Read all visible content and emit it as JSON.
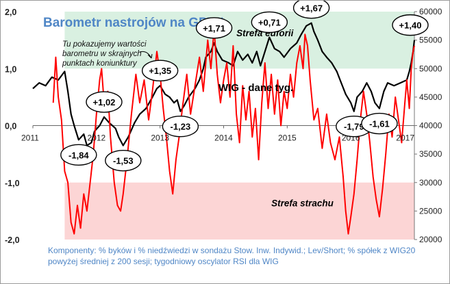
{
  "chart_data": {
    "type": "line",
    "title": "Barometr nastrojów na GPW*",
    "note": [
      "Tu pokazujemy wartości",
      "barometru w skrajnych",
      "punktach koniunktury"
    ],
    "series_label": "WIG - dane tyg.",
    "x_range": [
      2011,
      2017
    ],
    "x_ticks": [
      "2011",
      "2012",
      "2013",
      "2014",
      "2015",
      "2016",
      "2017"
    ],
    "y_left": {
      "range": [
        -2,
        2
      ],
      "ticks": [
        "-2,0",
        "-1,0",
        "0,0",
        "1,0",
        "2,0"
      ]
    },
    "y_right": {
      "range": [
        20000,
        60000
      ],
      "ticks": [
        "20000",
        "25000",
        "30000",
        "35000",
        "40000",
        "45000",
        "50000",
        "55000",
        "60000"
      ]
    },
    "zones": [
      {
        "name": "Strefa euforii",
        "from": 1,
        "to": 2,
        "color": "#d9f0e1"
      },
      {
        "name": "Strefa strachu",
        "from": -2,
        "to": -1,
        "color": "#fcd5d5"
      }
    ],
    "series": [
      {
        "name": "WIG",
        "axis": "right",
        "color": "#000000",
        "points": [
          [
            2011.0,
            46500
          ],
          [
            2011.1,
            47500
          ],
          [
            2011.2,
            47000
          ],
          [
            2011.3,
            48500
          ],
          [
            2011.4,
            48000
          ],
          [
            2011.5,
            49500
          ],
          [
            2011.55,
            46000
          ],
          [
            2011.6,
            42000
          ],
          [
            2011.65,
            40000
          ],
          [
            2011.72,
            37500
          ],
          [
            2011.8,
            38500
          ],
          [
            2011.85,
            36500
          ],
          [
            2011.92,
            37000
          ],
          [
            2011.97,
            39000
          ],
          [
            2012.05,
            40000
          ],
          [
            2012.12,
            41500
          ],
          [
            2012.2,
            40500
          ],
          [
            2012.3,
            39500
          ],
          [
            2012.35,
            38000
          ],
          [
            2012.42,
            36500
          ],
          [
            2012.5,
            38000
          ],
          [
            2012.6,
            40500
          ],
          [
            2012.68,
            42000
          ],
          [
            2012.78,
            43000
          ],
          [
            2012.88,
            45000
          ],
          [
            2012.95,
            46500
          ],
          [
            2013.0,
            47000
          ],
          [
            2013.08,
            45500
          ],
          [
            2013.15,
            45000
          ],
          [
            2013.22,
            44000
          ],
          [
            2013.27,
            44500
          ],
          [
            2013.32,
            42500
          ],
          [
            2013.38,
            43500
          ],
          [
            2013.45,
            45000
          ],
          [
            2013.55,
            46500
          ],
          [
            2013.62,
            48000
          ],
          [
            2013.68,
            50000
          ],
          [
            2013.72,
            52000
          ],
          [
            2013.8,
            53000
          ],
          [
            2013.85,
            54500
          ],
          [
            2013.9,
            53000
          ],
          [
            2013.98,
            51500
          ],
          [
            2014.08,
            51000
          ],
          [
            2014.15,
            50500
          ],
          [
            2014.22,
            53000
          ],
          [
            2014.3,
            51500
          ],
          [
            2014.38,
            52500
          ],
          [
            2014.45,
            51000
          ],
          [
            2014.52,
            53000
          ],
          [
            2014.58,
            50500
          ],
          [
            2014.65,
            53000
          ],
          [
            2014.72,
            55500
          ],
          [
            2014.8,
            53500
          ],
          [
            2014.88,
            53000
          ],
          [
            2014.95,
            52000
          ],
          [
            2015.05,
            53500
          ],
          [
            2015.15,
            54500
          ],
          [
            2015.22,
            56000
          ],
          [
            2015.3,
            57500
          ],
          [
            2015.38,
            58000
          ],
          [
            2015.42,
            56500
          ],
          [
            2015.48,
            55000
          ],
          [
            2015.55,
            53000
          ],
          [
            2015.62,
            52000
          ],
          [
            2015.7,
            51000
          ],
          [
            2015.78,
            49500
          ],
          [
            2015.85,
            47500
          ],
          [
            2015.92,
            45500
          ],
          [
            2016.0,
            44000
          ],
          [
            2016.05,
            42500
          ],
          [
            2016.1,
            45000
          ],
          [
            2016.18,
            46000
          ],
          [
            2016.25,
            47500
          ],
          [
            2016.32,
            46000
          ],
          [
            2016.38,
            44000
          ],
          [
            2016.45,
            43000
          ],
          [
            2016.52,
            46000
          ],
          [
            2016.58,
            47500
          ],
          [
            2016.68,
            47000
          ],
          [
            2016.78,
            47500
          ],
          [
            2016.88,
            48000
          ],
          [
            2016.92,
            49500
          ],
          [
            2016.95,
            51000
          ],
          [
            2016.98,
            53000
          ],
          [
            2017.0,
            55000
          ]
        ]
      },
      {
        "name": "Barometr",
        "axis": "left",
        "color": "#ff0000",
        "points": [
          [
            2011.32,
            0.4
          ],
          [
            2011.36,
            1.2
          ],
          [
            2011.4,
            0.5
          ],
          [
            2011.45,
            0.1
          ],
          [
            2011.5,
            -0.8
          ],
          [
            2011.55,
            -1.0
          ],
          [
            2011.6,
            -1.7
          ],
          [
            2011.65,
            -1.9
          ],
          [
            2011.7,
            -1.4
          ],
          [
            2011.75,
            -1.8
          ],
          [
            2011.8,
            -1.2
          ],
          [
            2011.85,
            -1.5
          ],
          [
            2011.9,
            -1.0
          ],
          [
            2011.95,
            -0.5
          ],
          [
            2012.0,
            0.2
          ],
          [
            2012.05,
            0.8
          ],
          [
            2012.08,
            1.0
          ],
          [
            2012.12,
            0.4
          ],
          [
            2012.18,
            0.6
          ],
          [
            2012.22,
            -0.2
          ],
          [
            2012.28,
            -1.0
          ],
          [
            2012.33,
            -1.4
          ],
          [
            2012.38,
            -1.5
          ],
          [
            2012.42,
            -1.2
          ],
          [
            2012.48,
            -0.6
          ],
          [
            2012.55,
            0.2
          ],
          [
            2012.62,
            0.9
          ],
          [
            2012.68,
            0.4
          ],
          [
            2012.75,
            0.8
          ],
          [
            2012.82,
            0.1
          ],
          [
            2012.88,
            0.6
          ],
          [
            2012.95,
            1.3
          ],
          [
            2013.0,
            0.9
          ],
          [
            2013.05,
            0.3
          ],
          [
            2013.1,
            -0.2
          ],
          [
            2013.15,
            -0.8
          ],
          [
            2013.2,
            -1.2
          ],
          [
            2013.25,
            -0.6
          ],
          [
            2013.3,
            -0.2
          ],
          [
            2013.35,
            0.3
          ],
          [
            2013.42,
            0.9
          ],
          [
            2013.48,
            0.2
          ],
          [
            2013.55,
            0.7
          ],
          [
            2013.62,
            1.2
          ],
          [
            2013.68,
            0.6
          ],
          [
            2013.75,
            1.5
          ],
          [
            2013.8,
            1.0
          ],
          [
            2013.85,
            1.7
          ],
          [
            2013.9,
            0.9
          ],
          [
            2013.95,
            0.4
          ],
          [
            2014.0,
            0.8
          ],
          [
            2014.05,
            1.1
          ],
          [
            2014.1,
            0.5
          ],
          [
            2014.15,
            1.4
          ],
          [
            2014.2,
            0.2
          ],
          [
            2014.25,
            -0.3
          ],
          [
            2014.3,
            0.7
          ],
          [
            2014.35,
            0.1
          ],
          [
            2014.4,
            0.6
          ],
          [
            2014.45,
            -0.2
          ],
          [
            2014.5,
            0.3
          ],
          [
            2014.55,
            -0.6
          ],
          [
            2014.6,
            0.4
          ],
          [
            2014.65,
            1.1
          ],
          [
            2014.7,
            0.3
          ],
          [
            2014.75,
            0.9
          ],
          [
            2014.8,
            0.2
          ],
          [
            2014.85,
            0.8
          ],
          [
            2014.9,
            0.0
          ],
          [
            2014.95,
            0.6
          ],
          [
            2015.0,
            0.3
          ],
          [
            2015.05,
            0.9
          ],
          [
            2015.1,
            0.5
          ],
          [
            2015.15,
            1.1
          ],
          [
            2015.2,
            1.4
          ],
          [
            2015.25,
            1.0
          ],
          [
            2015.28,
            1.6
          ],
          [
            2015.32,
            1.4
          ],
          [
            2015.36,
            0.8
          ],
          [
            2015.42,
            0.1
          ],
          [
            2015.48,
            0.3
          ],
          [
            2015.55,
            -0.4
          ],
          [
            2015.62,
            0.2
          ],
          [
            2015.68,
            -0.3
          ],
          [
            2015.75,
            -0.6
          ],
          [
            2015.82,
            -0.2
          ],
          [
            2015.88,
            -0.9
          ],
          [
            2015.92,
            -1.5
          ],
          [
            2015.96,
            -1.9
          ],
          [
            2016.0,
            -1.6
          ],
          [
            2016.05,
            -1.2
          ],
          [
            2016.1,
            -0.6
          ],
          [
            2016.15,
            0.1
          ],
          [
            2016.2,
            0.6
          ],
          [
            2016.25,
            0.2
          ],
          [
            2016.3,
            -0.3
          ],
          [
            2016.35,
            -0.9
          ],
          [
            2016.4,
            -1.3
          ],
          [
            2016.45,
            -1.6
          ],
          [
            2016.5,
            -1.1
          ],
          [
            2016.55,
            -0.5
          ],
          [
            2016.6,
            0.2
          ],
          [
            2016.65,
            -0.2
          ],
          [
            2016.7,
            0.5
          ],
          [
            2016.75,
            0.1
          ],
          [
            2016.8,
            -0.3
          ],
          [
            2016.85,
            0.4
          ],
          [
            2016.88,
            0.8
          ],
          [
            2016.92,
            0.3
          ],
          [
            2016.95,
            1.0
          ],
          [
            2016.98,
            1.3
          ],
          [
            2017.0,
            1.4
          ]
        ]
      }
    ],
    "annotations": [
      {
        "text": "-1,84",
        "x": 2011.72,
        "y": 37500,
        "side": "below"
      },
      {
        "text": "+1,02",
        "x": 2012.12,
        "y": 41500,
        "side": "above"
      },
      {
        "text": "-1,53",
        "x": 2012.42,
        "y": 36500,
        "side": "below"
      },
      {
        "text": "+1,35",
        "x": 2013.0,
        "y": 47000,
        "side": "above"
      },
      {
        "text": "-1,23",
        "x": 2013.32,
        "y": 42500,
        "side": "below"
      },
      {
        "text": "+1,71",
        "x": 2013.85,
        "y": 54500,
        "side": "above"
      },
      {
        "text": "+0,71",
        "x": 2014.72,
        "y": 55500,
        "side": "above"
      },
      {
        "text": "+1,67",
        "x": 2015.38,
        "y": 58000,
        "side": "above"
      },
      {
        "text": "-1,79",
        "x": 2016.05,
        "y": 42500,
        "side": "below"
      },
      {
        "text": "-1,61",
        "x": 2016.45,
        "y": 43000,
        "side": "below"
      },
      {
        "text": "+1,40",
        "x": 2017.0,
        "y": 55000,
        "side": "above"
      }
    ]
  },
  "footnote": "Komponenty: % byków i % niedźwiedzi w sondażu Stow. Inw. Indywid.; Lev/Short; % spółek z WIG20 powyżej średniej z 200 sesji; tygodniowy oscylator RSI dla WIG"
}
